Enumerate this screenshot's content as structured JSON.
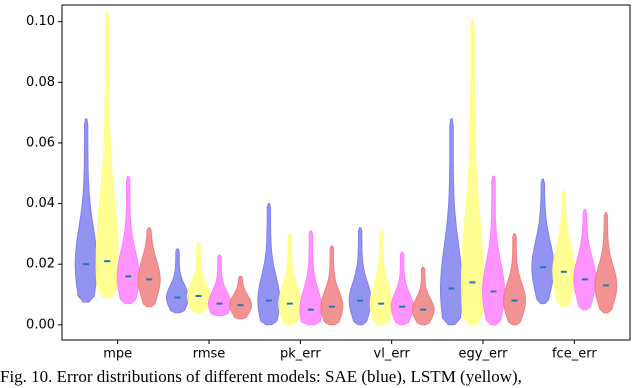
{
  "chart_data": {
    "type": "violin",
    "caption": "Fig. 10. Error distributions of different models: SAE (blue), LSTM (yellow),",
    "categories": [
      "mpe",
      "rmse",
      "pk_err",
      "vl_err",
      "egy_err",
      "fce_err"
    ],
    "ylim": [
      -0.005,
      0.1055
    ],
    "yticks": [
      {
        "value": 0,
        "label": "0.00"
      },
      {
        "value": 0.02,
        "label": "0.02"
      },
      {
        "value": 0.04,
        "label": "0.04"
      },
      {
        "value": 0.06,
        "label": "0.06"
      },
      {
        "value": 0.08,
        "label": "0.08"
      },
      {
        "value": 0.1,
        "label": "0.10"
      }
    ],
    "series": [
      {
        "color": "#8080f0",
        "min": [
          0.0075,
          0.004,
          0,
          0,
          0,
          0.007
        ],
        "median": [
          0.02,
          0.009,
          0.008,
          0.008,
          0.012,
          0.019
        ],
        "max": [
          0.068,
          0.025,
          0.04,
          0.032,
          0.068,
          0.048
        ]
      },
      {
        "color": "#ffff80",
        "min": [
          0.009,
          0.004,
          0,
          0,
          0,
          0.006
        ],
        "median": [
          0.021,
          0.0095,
          0.007,
          0.007,
          0.014,
          0.0175
        ],
        "max": [
          0.103,
          0.027,
          0.03,
          0.031,
          0.101,
          0.044
        ]
      },
      {
        "color": "#ff80ff",
        "min": [
          0.007,
          0.003,
          0,
          0,
          0,
          0.005
        ],
        "median": [
          0.016,
          0.007,
          0.005,
          0.006,
          0.011,
          0.015
        ],
        "max": [
          0.049,
          0.023,
          0.031,
          0.024,
          0.049,
          0.038
        ]
      },
      {
        "color": "#f08080",
        "min": [
          0.006,
          0.002,
          0,
          0,
          0,
          0.004
        ],
        "median": [
          0.015,
          0.0065,
          0.006,
          0.005,
          0.008,
          0.013
        ],
        "max": [
          0.032,
          0.016,
          0.026,
          0.019,
          0.03,
          0.037
        ]
      }
    ]
  }
}
